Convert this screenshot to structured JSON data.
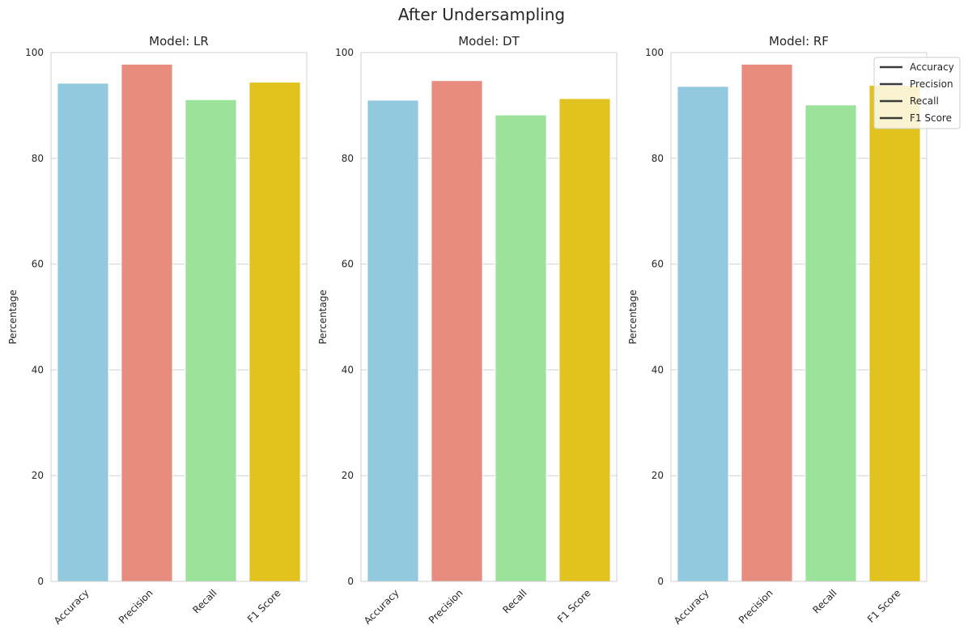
{
  "figure_title": "After Undersampling",
  "colors": {
    "Accuracy": "#92c9de",
    "Precision": "#e98c80",
    "Recall": "#9be29b",
    "F1 Score": "#e1c21e",
    "grid": "#d0d0d0",
    "spine": "#cfcfcf",
    "legend_line": "#3a3a3a"
  },
  "legend": {
    "entries": [
      "Accuracy",
      "Precision",
      "Recall",
      "F1 Score"
    ],
    "placement": "top-right of last panel"
  },
  "chart_data": [
    {
      "type": "bar",
      "title": "Model: LR",
      "ylabel": "Percentage",
      "xlabel": "",
      "categories": [
        "Accuracy",
        "Precision",
        "Recall",
        "F1 Score"
      ],
      "values": [
        94.2,
        97.8,
        91.1,
        94.4
      ],
      "ylim": [
        0,
        100
      ],
      "yticks": [
        0,
        20,
        40,
        60,
        80,
        100
      ],
      "grid": "y"
    },
    {
      "type": "bar",
      "title": "Model: DT",
      "ylabel": "Percentage",
      "xlabel": "",
      "categories": [
        "Accuracy",
        "Precision",
        "Recall",
        "F1 Score"
      ],
      "values": [
        91.0,
        94.7,
        88.2,
        91.3
      ],
      "ylim": [
        0,
        100
      ],
      "yticks": [
        0,
        20,
        40,
        60,
        80,
        100
      ],
      "grid": "y"
    },
    {
      "type": "bar",
      "title": "Model: RF",
      "ylabel": "Percentage",
      "xlabel": "",
      "categories": [
        "Accuracy",
        "Precision",
        "Recall",
        "F1 Score"
      ],
      "values": [
        93.6,
        97.8,
        90.1,
        93.8
      ],
      "ylim": [
        0,
        100
      ],
      "yticks": [
        0,
        20,
        40,
        60,
        80,
        100
      ],
      "grid": "y"
    }
  ]
}
